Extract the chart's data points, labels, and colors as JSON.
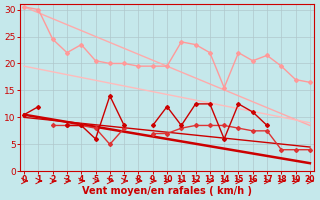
{
  "background_color": "#c5e8eb",
  "grid_color": "#b0c8cc",
  "xlabel": "Vent moyen/en rafales ( km/h )",
  "xlabel_color": "#cc0000",
  "xlabel_fontsize": 7,
  "tick_color": "#cc0000",
  "x_ticks": [
    0,
    1,
    2,
    3,
    4,
    5,
    6,
    7,
    8,
    9,
    10,
    11,
    12,
    13,
    14,
    15,
    16,
    17,
    18,
    19,
    20
  ],
  "ylim": [
    0,
    31
  ],
  "xlim": [
    -0.3,
    20.3
  ],
  "yticks": [
    0,
    5,
    10,
    15,
    20,
    25,
    30
  ],
  "pink_trend1_x": [
    0,
    20
  ],
  "pink_trend1_y": [
    30.5,
    8.5
  ],
  "pink_trend1_color": "#ffaaaa",
  "pink_trend1_lw": 1.0,
  "pink_trend2_x": [
    0,
    20
  ],
  "pink_trend2_y": [
    19.5,
    9.0
  ],
  "pink_trend2_color": "#ffbbbb",
  "pink_trend2_lw": 1.0,
  "gust_line_x": [
    0,
    1,
    2,
    3,
    4,
    5,
    6,
    7,
    8,
    9,
    10,
    11,
    12,
    13,
    14,
    15,
    16,
    17,
    18,
    19,
    20
  ],
  "gust_line_y": [
    30.5,
    30.0,
    24.5,
    22.0,
    23.5,
    20.5,
    20.0,
    20.0,
    19.5,
    19.5,
    19.5,
    24.0,
    23.5,
    22.0,
    15.5,
    22.0,
    20.5,
    21.5,
    19.5,
    17.0,
    16.5
  ],
  "gust_line_color": "#ff9999",
  "gust_line_lw": 1.0,
  "red_trend1_x": [
    0,
    20
  ],
  "red_trend1_y": [
    10.5,
    1.5
  ],
  "red_trend1_color": "#cc0000",
  "red_trend1_lw": 1.8,
  "red_trend2_x": [
    0,
    20
  ],
  "red_trend2_y": [
    10.0,
    4.5
  ],
  "red_trend2_color": "#cc0000",
  "red_trend2_lw": 1.0,
  "mean_line_x": [
    0,
    1,
    2,
    3,
    4,
    5,
    6,
    7,
    8,
    9,
    10,
    11,
    12,
    13,
    14,
    15,
    16,
    17,
    18,
    19,
    20
  ],
  "mean_line_y": [
    10.5,
    12.0,
    null,
    8.5,
    8.5,
    6.0,
    14.0,
    8.5,
    null,
    8.5,
    12.0,
    8.5,
    12.5,
    12.5,
    6.0,
    12.5,
    11.0,
    8.5,
    null,
    null,
    null
  ],
  "mean_line_color": "#cc0000",
  "mean_line_lw": 1.0,
  "dots_line_x": [
    0,
    1,
    2,
    3,
    4,
    5,
    6,
    7,
    8,
    9,
    10,
    11,
    12,
    13,
    14,
    15,
    16,
    17,
    18,
    19,
    20
  ],
  "dots_line_y": [
    null,
    null,
    8.5,
    8.5,
    8.5,
    8.0,
    5.0,
    8.0,
    null,
    7.0,
    7.0,
    8.0,
    8.5,
    8.5,
    8.5,
    8.0,
    7.5,
    7.5,
    4.0,
    4.0,
    4.0
  ],
  "dots_line_color": "#dd3333",
  "dots_line_lw": 1.0,
  "wind_arrows_x": [
    0,
    1,
    2,
    3,
    4,
    5,
    6,
    7,
    8,
    9,
    10,
    11,
    12,
    13,
    14,
    15,
    16,
    17,
    18,
    19,
    20
  ],
  "arrow_color": "#cc0000"
}
